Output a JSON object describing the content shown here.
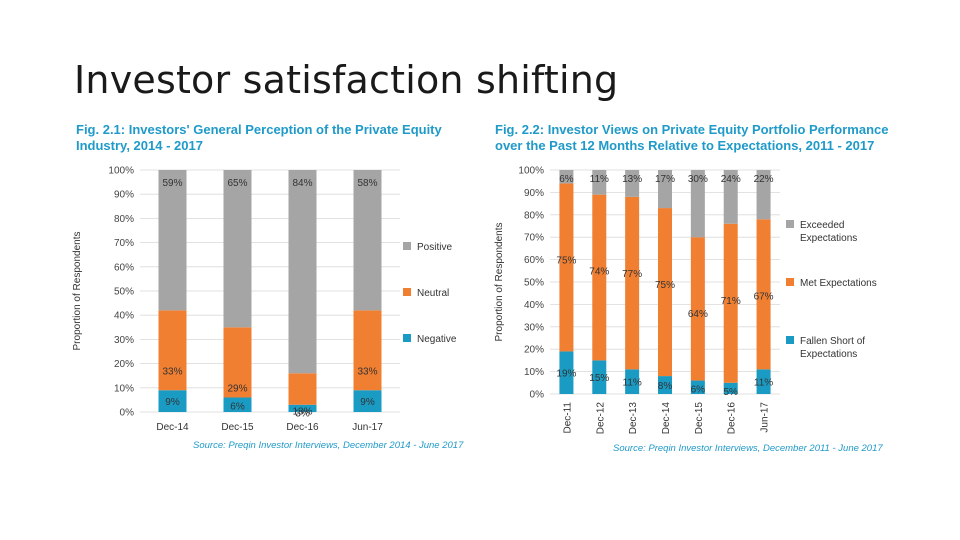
{
  "slide": {
    "title": "Investor satisfaction shifting"
  },
  "figures": [
    {
      "title_line1": "Fig. 2.1: Investors' General Perception of the Private Equity",
      "title_line2": "Industry, 2014 - 2017",
      "source": "Source: Preqin Investor Interviews, December 2014 - June 2017"
    },
    {
      "title_line1": "Fig. 2.2: Investor Views on Private Equity Portfolio Performance",
      "title_line2": "over the Past 12 Months Relative to Expectations, 2011 - 2017",
      "source": "Source: Preqin Investor Interviews, December 2011 - June 2017"
    }
  ],
  "chart_data": [
    {
      "type": "bar",
      "stacked": true,
      "title": "Fig. 2.1: Investors' General Perception of the Private Equity Industry, 2014 - 2017",
      "ylabel": "Proportion of Respondents",
      "xlabel": "",
      "ylim": [
        0,
        100
      ],
      "yticks": [
        "0%",
        "10%",
        "20%",
        "30%",
        "40%",
        "50%",
        "60%",
        "70%",
        "80%",
        "90%",
        "100%"
      ],
      "categories": [
        "Dec-14",
        "Dec-15",
        "Dec-16",
        "Jun-17"
      ],
      "series": [
        {
          "name": "Negative",
          "color": "#1a9bc4",
          "values": [
            9,
            6,
            3,
            9
          ],
          "labels": [
            "9%",
            "6%",
            "3%",
            "9%"
          ]
        },
        {
          "name": "Neutral",
          "color": "#f07f32",
          "values": [
            33,
            29,
            13,
            33
          ],
          "labels": [
            "33%",
            "29%",
            "13%",
            "33%"
          ]
        },
        {
          "name": "Positive",
          "color": "#a5a5a5",
          "values": [
            59,
            65,
            84,
            58
          ],
          "labels": [
            "59%",
            "65%",
            "84%",
            "58%"
          ]
        }
      ],
      "legend": [
        "Positive",
        "Neutral",
        "Negative"
      ],
      "legend_position": "right"
    },
    {
      "type": "bar",
      "stacked": true,
      "title": "Fig. 2.2: Investor Views on Private Equity Portfolio Performance over the Past 12 Months Relative to Expectations, 2011 - 2017",
      "ylabel": "Proportion of Respondents",
      "xlabel": "",
      "ylim": [
        0,
        100
      ],
      "yticks": [
        "0%",
        "10%",
        "20%",
        "30%",
        "40%",
        "50%",
        "60%",
        "70%",
        "80%",
        "90%",
        "100%"
      ],
      "categories": [
        "Dec-11",
        "Dec-12",
        "Dec-13",
        "Dec-14",
        "Dec-15",
        "Dec-16",
        "Jun-17"
      ],
      "series": [
        {
          "name": "Fallen Short of Expectations",
          "color": "#1a9bc4",
          "values": [
            19,
            15,
            11,
            8,
            6,
            5,
            11
          ],
          "labels": [
            "19%",
            "15%",
            "11%",
            "8%",
            "6%",
            "5%",
            "11%"
          ]
        },
        {
          "name": "Met Expectations",
          "color": "#f07f32",
          "values": [
            75,
            74,
            77,
            75,
            64,
            71,
            67
          ],
          "labels": [
            "75%",
            "74%",
            "77%",
            "75%",
            "64%",
            "71%",
            "67%"
          ]
        },
        {
          "name": "Exceeded Expectations",
          "color": "#a5a5a5",
          "values": [
            6,
            11,
            13,
            17,
            30,
            24,
            22
          ],
          "labels": [
            "6%",
            "11%",
            "13%",
            "17%",
            "30%",
            "24%",
            "22%"
          ]
        }
      ],
      "legend": [
        "Exceeded Expectations",
        "Met Expectations",
        "Fallen Short of Expectations"
      ],
      "legend_position": "right"
    }
  ]
}
